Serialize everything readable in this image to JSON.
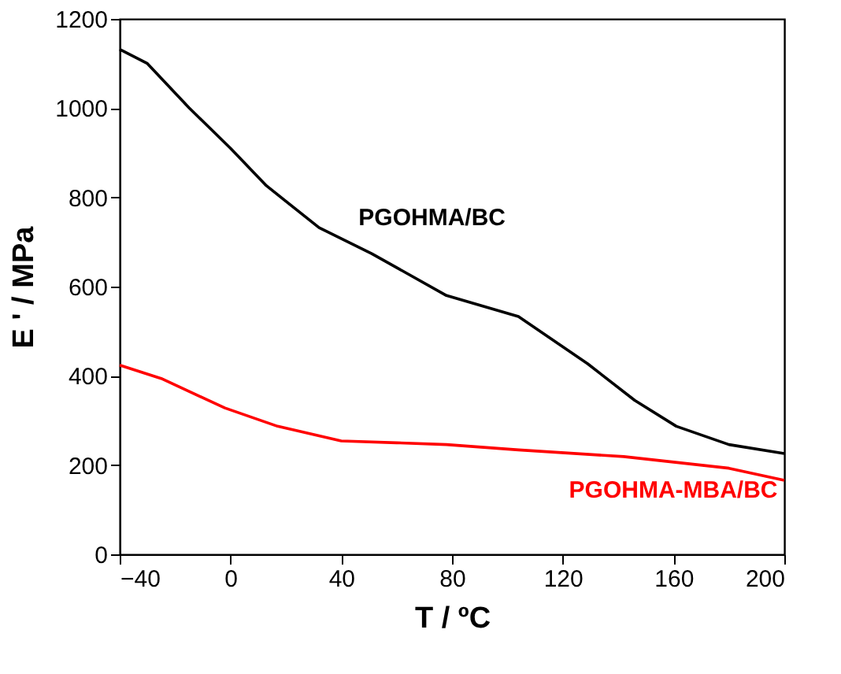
{
  "chart_data": {
    "type": "line",
    "xlabel": "T / ºC",
    "ylabel": "E ' / MPa",
    "xlim": [
      -40,
      200
    ],
    "ylim": [
      0,
      1200
    ],
    "xticks": [
      -40,
      0,
      40,
      80,
      120,
      160,
      200
    ],
    "yticks": [
      0,
      200,
      400,
      600,
      800,
      1000,
      1200
    ],
    "grid": false,
    "line_style": "solid",
    "marker": "none",
    "series": [
      {
        "name": "PGOHMA/BC",
        "color": "#000000",
        "x": [
          -40,
          -30,
          -15,
          0,
          13,
          32,
          51,
          78,
          104,
          129,
          146,
          161,
          180,
          200
        ],
        "values": [
          1132,
          1100,
          1001,
          910,
          826,
          732,
          674,
          580,
          533,
          427,
          345,
          287,
          246,
          226
        ]
      },
      {
        "name": "PGOHMA-MBA/BC",
        "color": "#ff0000",
        "x": [
          -40,
          -25,
          -2,
          17,
          40,
          60,
          78,
          104,
          142,
          180,
          200
        ],
        "values": [
          424,
          394,
          328,
          287,
          254,
          250,
          246,
          234,
          219,
          193,
          166
        ]
      }
    ]
  }
}
